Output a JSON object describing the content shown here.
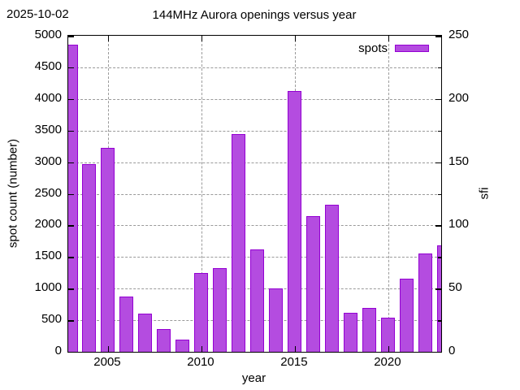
{
  "header": {
    "date": "2025-10-02"
  },
  "legend": {
    "position": "top-right-inside"
  },
  "chart_data": {
    "type": "bar",
    "title": "144MHz Aurora openings versus year",
    "xlabel": "year",
    "ylabel": "spot count (number)",
    "y2label": "sfi",
    "categories": [
      2003,
      2004,
      2005,
      2006,
      2007,
      2008,
      2009,
      2010,
      2011,
      2012,
      2013,
      2014,
      2015,
      2016,
      2017,
      2018,
      2019,
      2020,
      2021,
      2022,
      2023
    ],
    "series": [
      {
        "name": "spots",
        "values": [
          4860,
          2970,
          3230,
          880,
          600,
          360,
          190,
          1250,
          1320,
          3450,
          1620,
          1000,
          4120,
          2150,
          2330,
          620,
          700,
          535,
          1160,
          1560,
          1680
        ],
        "fill_color": "#b44ce0",
        "border_color": "#9400d3"
      }
    ],
    "ylim": [
      0,
      5000
    ],
    "ytick_step": 500,
    "y2lim": [
      0,
      250
    ],
    "y2tick_step": 50,
    "y2minor_step": 25,
    "xlim": [
      2002.87,
      2022.83
    ],
    "xticks": [
      2005,
      2010,
      2015,
      2020
    ],
    "grid": true,
    "grid_color": "#9a9a9a",
    "background": "#ffffff",
    "text_color": "#000000"
  }
}
